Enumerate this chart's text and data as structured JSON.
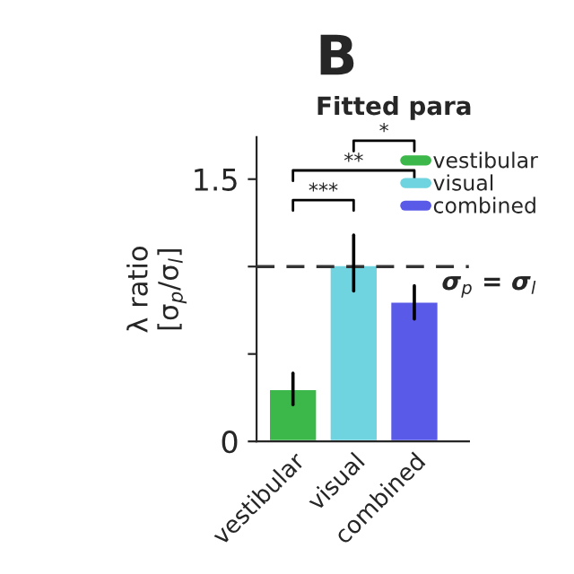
{
  "chart_data": {
    "type": "bar",
    "title": "Fitted para",
    "categories": [
      "vestibular",
      "visual",
      "combined"
    ],
    "values": [
      0.3,
      1.01,
      0.8
    ],
    "errors": [
      [
        0.21,
        0.39
      ],
      [
        0.86,
        1.18
      ],
      [
        0.7,
        0.89
      ]
    ],
    "colors": [
      "#3cb84a",
      "#6fd3e0",
      "#5a5ae8"
    ],
    "ylabel": "λ ratio\n[σ$_{p}$/σ$_{l}$]",
    "ylim": [
      0,
      1.74
    ],
    "yticks": [
      0,
      {
        "value": 0.5,
        "label": null
      },
      {
        "value": 1,
        "label": null
      },
      1.5
    ],
    "ref_lines": [
      {
        "axis": "y",
        "value": 1,
        "label": "σ$_{p}$ = σ$_{l}$",
        "line_style": "dashed"
      }
    ],
    "annotations": [
      "B",
      "***",
      "**",
      "*"
    ],
    "legend": "right",
    "grid": false
  }
}
